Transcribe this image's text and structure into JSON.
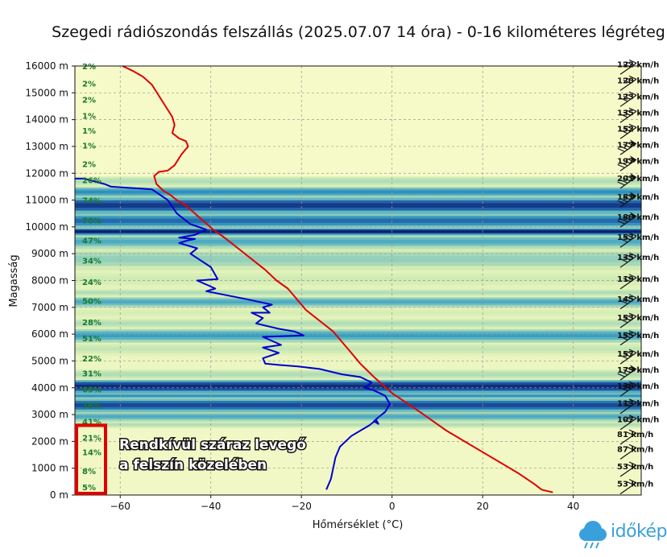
{
  "chart_data": {
    "type": "line",
    "title": "Szegedi rádiószondás felszállás (2025.07.07 14 óra) - 0-16 kilométeres légréteg",
    "xlabel": "Hőmérséklet (°C)",
    "ylabel": "Magasság",
    "xlim": [
      -70,
      55
    ],
    "ylim": [
      0,
      16000
    ],
    "xticks": [
      -60,
      -40,
      -20,
      0,
      20,
      40
    ],
    "xtick_labels": [
      "−60",
      "−40",
      "−20",
      "0",
      "20",
      "40"
    ],
    "yticks": [
      0,
      1000,
      2000,
      3000,
      4000,
      5000,
      6000,
      7000,
      8000,
      9000,
      10000,
      11000,
      12000,
      13000,
      14000,
      15000,
      16000
    ],
    "ytick_labels": [
      "0 m",
      "1000 m",
      "2000 m",
      "3000 m",
      "4000 m",
      "5000 m",
      "6000 m",
      "7000 m",
      "8000 m",
      "9000 m",
      "10000 m",
      "11000 m",
      "12000 m",
      "13000 m",
      "14000 m",
      "15000 m",
      "16000 m"
    ],
    "grid": true,
    "background": "relative humidity bands (yellow = dry, dark blue = moist)",
    "series": [
      {
        "color": "#e00000",
        "x": [
          35.5,
          33.0,
          31.5,
          28.0,
          24.0,
          20.0,
          16.0,
          12.0,
          9.5,
          7.0,
          3.5,
          0.0,
          -2.0,
          -4.0,
          -7.0,
          -9.0,
          -11.0,
          -13.0,
          -16.0,
          -19.0,
          -20.5,
          -21.5,
          -23.0,
          -25.5,
          -28.0,
          -31.0,
          -34.0,
          -37.0,
          -39.5,
          -41.5,
          -43.5,
          -45.5,
          -47.5,
          -49.0,
          -50.5,
          -52.0,
          -52.5,
          -51.5,
          -49.5,
          -48.0,
          -46.5,
          -45.0,
          -45.5,
          -47.0,
          -48.5,
          -48.0,
          -48.5,
          -50.0,
          -51.5,
          -53.0,
          -55.0,
          -57.0,
          -59.5
        ],
        "y": [
          100,
          200,
          400,
          800,
          1200,
          1600,
          2000,
          2400,
          2700,
          3000,
          3400,
          3800,
          4100,
          4400,
          4900,
          5300,
          5700,
          6100,
          6500,
          6900,
          7200,
          7400,
          7700,
          8000,
          8400,
          8800,
          9200,
          9600,
          9900,
          10200,
          10500,
          10800,
          11000,
          11200,
          11350,
          11600,
          11900,
          12050,
          12100,
          12300,
          12700,
          13000,
          13200,
          13300,
          13500,
          13800,
          14100,
          14500,
          14900,
          15300,
          15600,
          15800,
          16000
        ]
      },
      {
        "color": "#0000cc",
        "x": [
          -14.5,
          -13.5,
          -13.0,
          -12.5,
          -11.5,
          -9.0,
          -7.0,
          -5.0,
          -3.5,
          -3.0,
          -4.0,
          -3.0,
          -1.5,
          -0.5,
          -1.5,
          -4.0,
          -6.0,
          -4.5,
          -7.0,
          -11.0,
          -16.0,
          -21.0,
          -25.0,
          -28.0,
          -28.5,
          -25.0,
          -28.5,
          -24.5,
          -28.5,
          -19.5,
          -21.5,
          -25.0,
          -30.0,
          -28.5,
          -31.0,
          -27.0,
          -28.5,
          -26.5,
          -32.0,
          -41.0,
          -39.0,
          -43.0,
          -38.5,
          -40.0,
          -44.5,
          -43.0,
          -47.0,
          -45.0,
          -43.5,
          -47.0,
          -43.5,
          -41.0,
          -44.5,
          -47.5,
          -49.5,
          -53.0,
          -62.0,
          -63.5,
          -68.0,
          -70.0
        ],
        "y": [
          200,
          600,
          1000,
          1400,
          1800,
          2200,
          2400,
          2600,
          2800,
          2650,
          2750,
          2900,
          3100,
          3400,
          3700,
          3900,
          4000,
          4200,
          4400,
          4500,
          4700,
          4800,
          4850,
          4900,
          5100,
          5300,
          5500,
          5600,
          5900,
          5950,
          6100,
          6200,
          6400,
          6600,
          6800,
          6800,
          7000,
          7100,
          7300,
          7600,
          7700,
          8000,
          8050,
          8500,
          9000,
          9200,
          9400,
          9500,
          9550,
          9600,
          9700,
          9900,
          10100,
          10500,
          11000,
          11400,
          11500,
          11600,
          11800,
          11800
        ]
      }
    ],
    "humidity_labels": [
      {
        "text": "5%",
        "y": 300
      },
      {
        "text": "8%",
        "y": 900
      },
      {
        "text": "14%",
        "y": 1600
      },
      {
        "text": "21%",
        "y": 2150
      },
      {
        "text": "41%",
        "y": 2750
      },
      {
        "text": "76%",
        "y": 3350
      },
      {
        "text": "69%",
        "y": 3950
      },
      {
        "text": "31%",
        "y": 4550
      },
      {
        "text": "22%",
        "y": 5100
      },
      {
        "text": "51%",
        "y": 5850
      },
      {
        "text": "28%",
        "y": 6450
      },
      {
        "text": "50%",
        "y": 7250
      },
      {
        "text": "24%",
        "y": 7950
      },
      {
        "text": "34%",
        "y": 8750
      },
      {
        "text": "47%",
        "y": 9500
      },
      {
        "text": "70%",
        "y": 10250
      },
      {
        "text": "74%",
        "y": 11000
      },
      {
        "text": "26%",
        "y": 11750
      },
      {
        "text": "2%",
        "y": 12350
      },
      {
        "text": "1%",
        "y": 13050
      },
      {
        "text": "1%",
        "y": 13600
      },
      {
        "text": "1%",
        "y": 14150
      },
      {
        "text": "2%",
        "y": 14750
      },
      {
        "text": "2%",
        "y": 15350
      },
      {
        "text": "2%",
        "y": 16000
      }
    ],
    "humidity_bands": [
      {
        "y0": 0,
        "y1": 2500,
        "level": 0.05
      },
      {
        "y0": 2500,
        "y1": 2750,
        "level": 0.3
      },
      {
        "y0": 2750,
        "y1": 3100,
        "level": 0.55
      },
      {
        "y0": 3100,
        "y1": 3600,
        "level": 0.85
      },
      {
        "y0": 3600,
        "y1": 3800,
        "level": 0.65
      },
      {
        "y0": 3800,
        "y1": 4300,
        "level": 0.95
      },
      {
        "y0": 4300,
        "y1": 4700,
        "level": 0.3
      },
      {
        "y0": 4700,
        "y1": 5200,
        "level": 0.12
      },
      {
        "y0": 5200,
        "y1": 5700,
        "level": 0.25
      },
      {
        "y0": 5700,
        "y1": 6200,
        "level": 0.6
      },
      {
        "y0": 6200,
        "y1": 6600,
        "level": 0.3
      },
      {
        "y0": 6600,
        "y1": 7000,
        "level": 0.2
      },
      {
        "y0": 7000,
        "y1": 7400,
        "level": 0.55
      },
      {
        "y0": 7400,
        "y1": 7700,
        "level": 0.3
      },
      {
        "y0": 7700,
        "y1": 8400,
        "level": 0.22
      },
      {
        "y0": 8400,
        "y1": 9200,
        "level": 0.38
      },
      {
        "y0": 9200,
        "y1": 9700,
        "level": 0.55
      },
      {
        "y0": 9700,
        "y1": 9950,
        "level": 1.0
      },
      {
        "y0": 9950,
        "y1": 10500,
        "level": 0.75
      },
      {
        "y0": 10500,
        "y1": 11100,
        "level": 0.9
      },
      {
        "y0": 11100,
        "y1": 11500,
        "level": 0.65
      },
      {
        "y0": 11500,
        "y1": 11900,
        "level": 0.3
      },
      {
        "y0": 11900,
        "y1": 16000,
        "level": 0.0
      }
    ],
    "wind_labels": [
      {
        "text": "53 km/h",
        "y": 400
      },
      {
        "text": "53 km/h",
        "y": 1050
      },
      {
        "text": "87 km/h",
        "y": 1700
      },
      {
        "text": "81 km/h",
        "y": 2250
      },
      {
        "text": "107 km/h",
        "y": 2800
      },
      {
        "text": "113 km/h",
        "y": 3400
      },
      {
        "text": "130 km/h",
        "y": 4050
      },
      {
        "text": "175 km/h",
        "y": 4650
      },
      {
        "text": "157 km/h",
        "y": 5250
      },
      {
        "text": "155 km/h",
        "y": 5950
      },
      {
        "text": "153 km/h",
        "y": 6600
      },
      {
        "text": "145 km/h",
        "y": 7300
      },
      {
        "text": "119 km/h",
        "y": 8050
      },
      {
        "text": "135 km/h",
        "y": 8850
      },
      {
        "text": "153 km/h",
        "y": 9600
      },
      {
        "text": "180 km/h",
        "y": 10350
      },
      {
        "text": "181 km/h",
        "y": 11100
      },
      {
        "text": "201 km/h",
        "y": 11800
      },
      {
        "text": "197 km/h",
        "y": 12450
      },
      {
        "text": "177 km/h",
        "y": 13050
      },
      {
        "text": "152 km/h",
        "y": 13650
      },
      {
        "text": "135 km/h",
        "y": 14250
      },
      {
        "text": "123 km/h",
        "y": 14850
      },
      {
        "text": "120 km/h",
        "y": 15450
      },
      {
        "text": "122 km/h",
        "y": 16050
      }
    ],
    "annotation": {
      "lines": [
        "Rendkívül száraz levegő",
        "a felszín közelében"
      ],
      "box_y0": 0,
      "box_y1": 2600
    }
  },
  "logo": {
    "text": "időkép",
    "color": "#3aa0dc"
  }
}
